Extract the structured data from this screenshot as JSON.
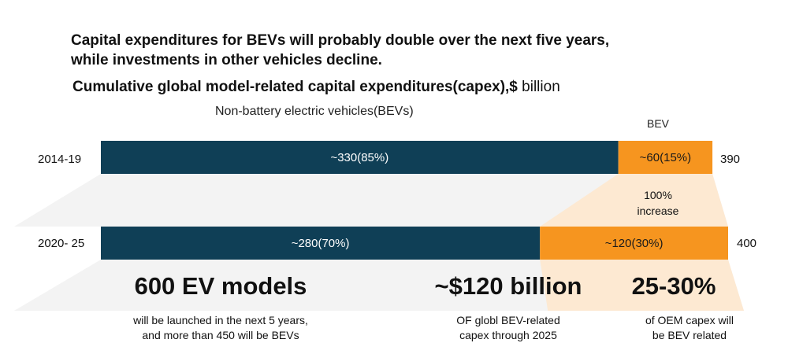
{
  "headline": {
    "line1": "Capital expenditures for BEVs will probably double over the next five years,",
    "line2": "while investments in other vehicles decline."
  },
  "chart_data": {
    "type": "bar",
    "orientation": "horizontal",
    "stacked": true,
    "title": "Cumulative global model-related capital expenditures(capex),$",
    "unit": "billion",
    "categories": [
      "2014-19",
      "2020- 25"
    ],
    "series": [
      {
        "name": "Non-battery electric vehicles(BEVs)",
        "values": [
          330,
          280
        ],
        "labels": [
          "~330(85%)",
          "~280(70%)"
        ],
        "color": "#0f3f56"
      },
      {
        "name": "BEV",
        "values": [
          60,
          120
        ],
        "labels": [
          "~60(15%)",
          "~120(30%)"
        ],
        "color": "#f6951f"
      }
    ],
    "totals": [
      "390",
      "400"
    ],
    "annotation": {
      "line1": "100%",
      "line2": "increase"
    },
    "colors": {
      "band": "#eeeeee",
      "bev_band": "#fde9d2"
    }
  },
  "stats": [
    {
      "value": "600 EV models",
      "desc1": "will be launched in the next 5 years,",
      "desc2": "and more than 450 will be BEVs"
    },
    {
      "value": "~$120 billion",
      "desc1": "OF globl BEV-related",
      "desc2": "capex through 2025"
    },
    {
      "value": "25-30%",
      "desc1": "of OEM capex will",
      "desc2": "be BEV related"
    }
  ]
}
